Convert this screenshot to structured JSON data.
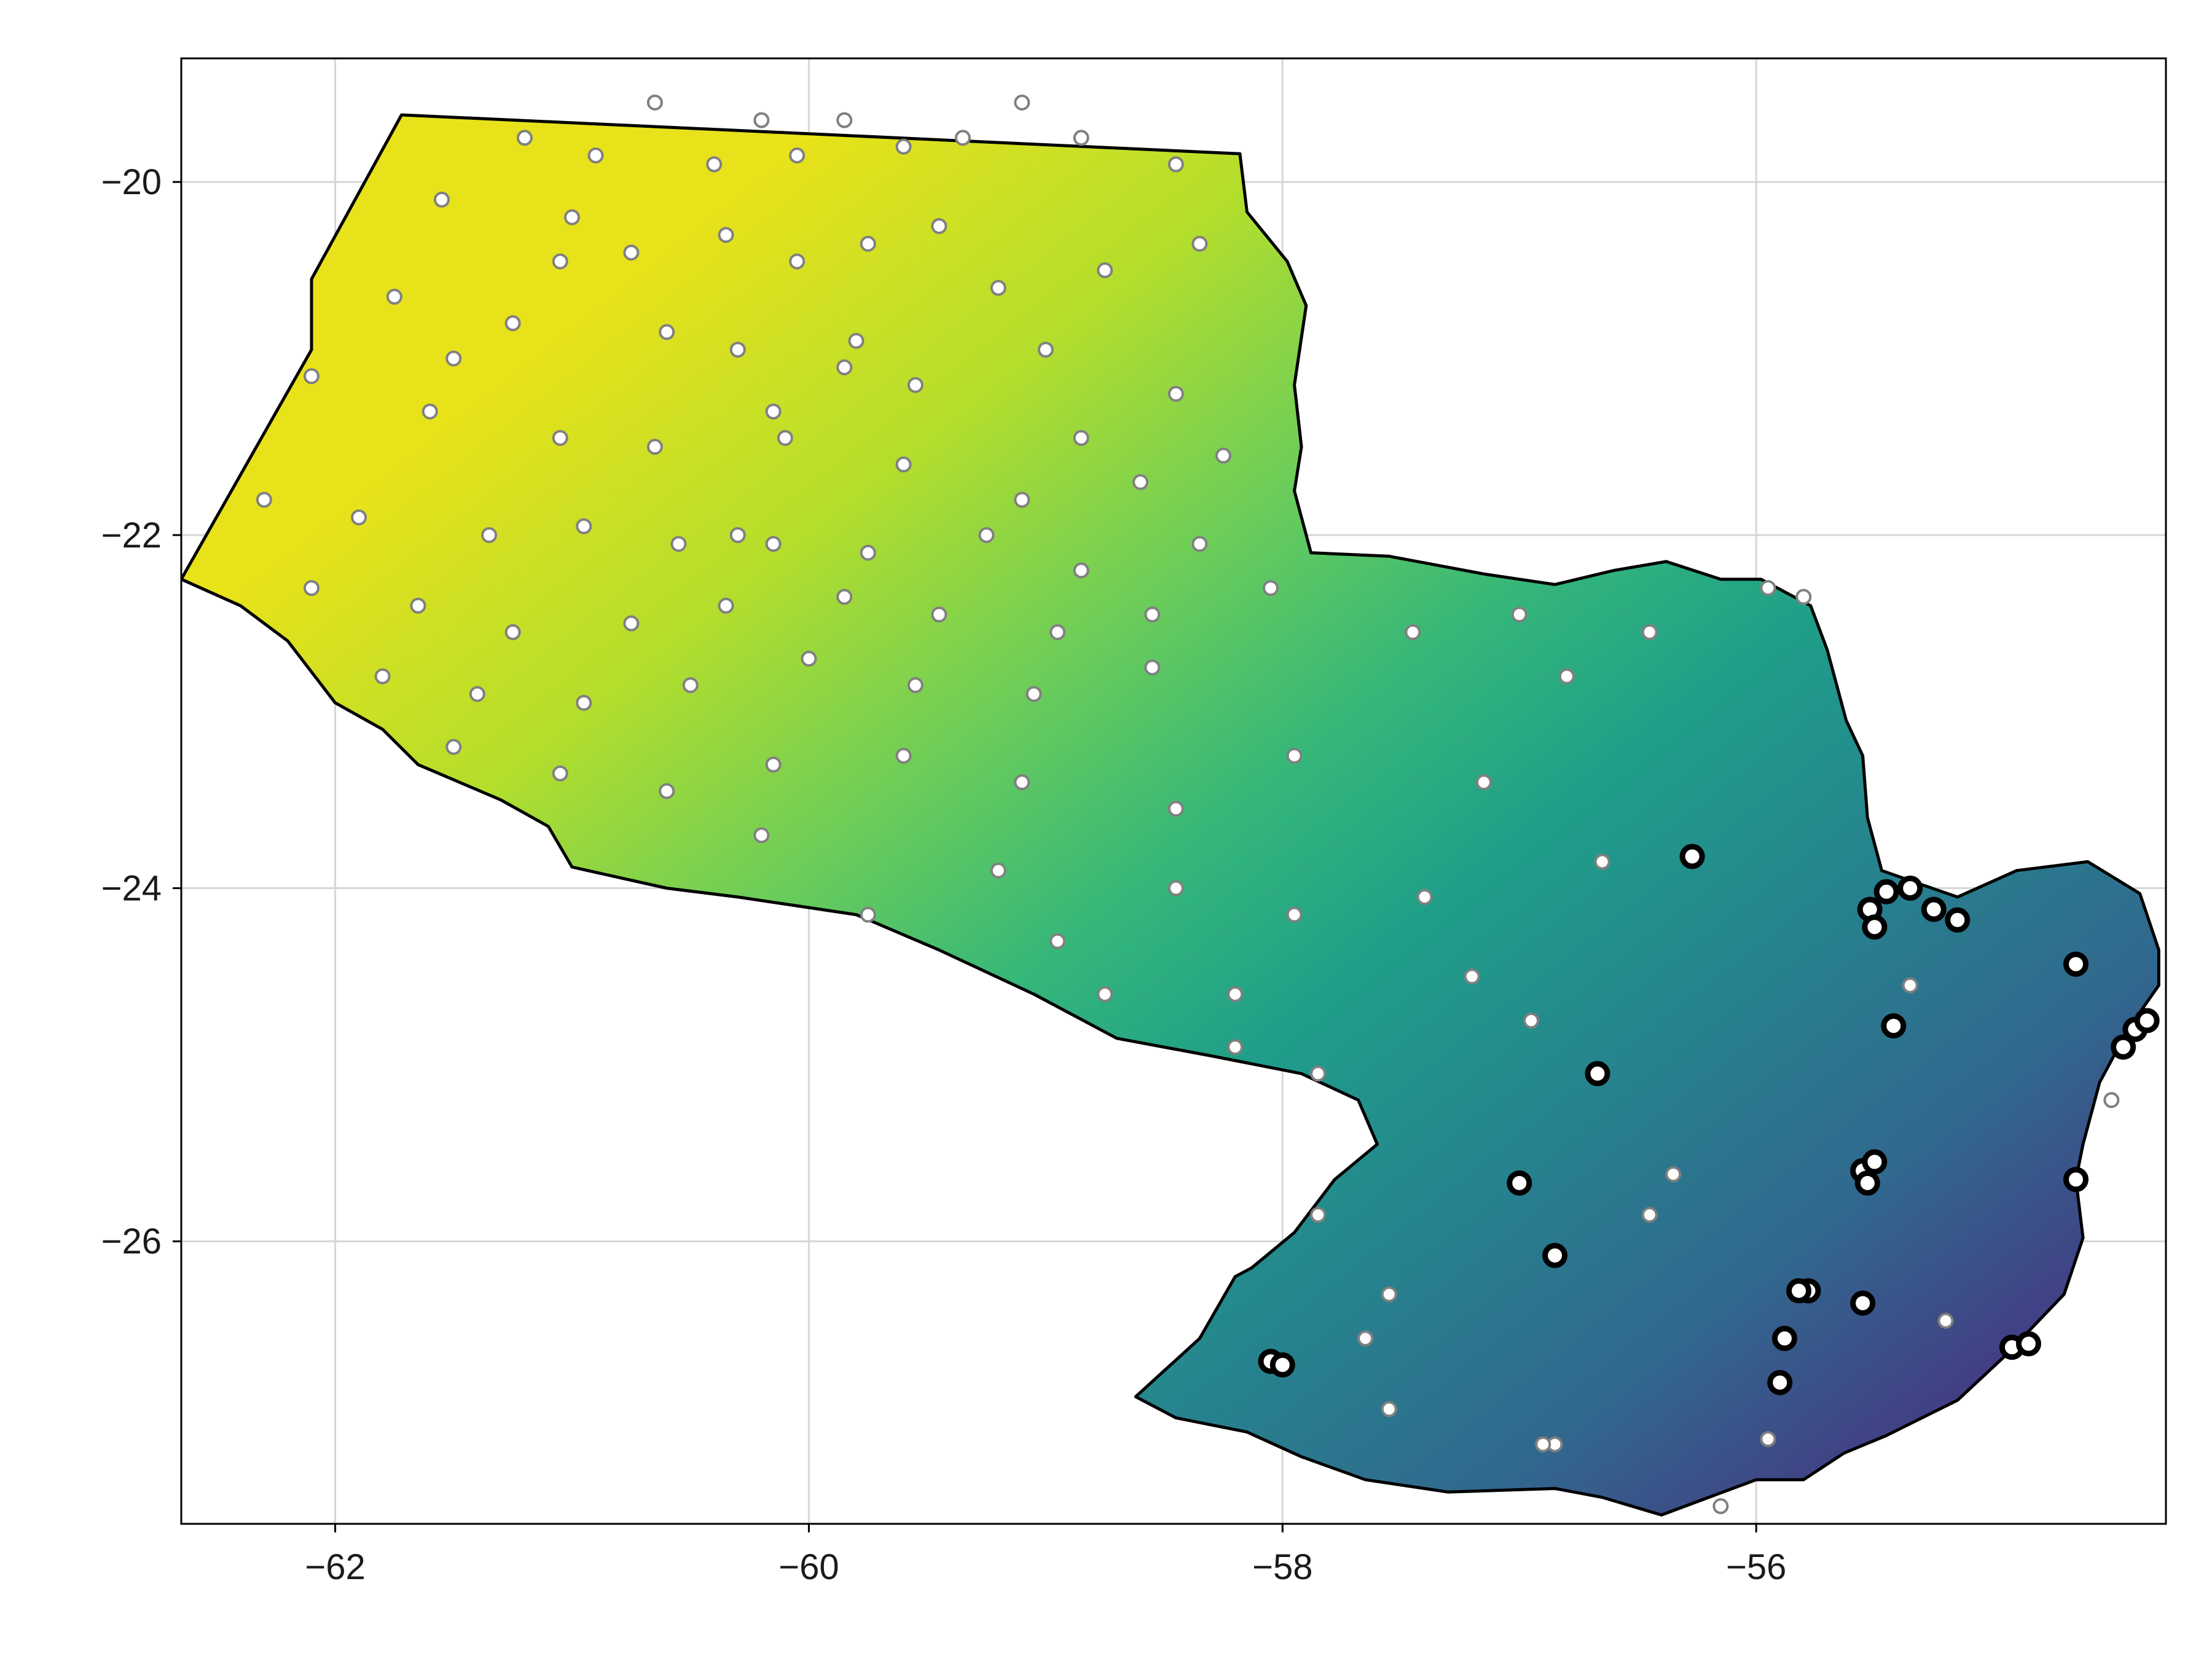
{
  "map": {
    "x_ticks": [
      {
        "value": -62,
        "label": "−62"
      },
      {
        "value": -60,
        "label": "−60"
      },
      {
        "value": -58,
        "label": "−58"
      },
      {
        "value": -56,
        "label": "−56"
      }
    ],
    "y_ticks": [
      {
        "value": -20,
        "label": "−20"
      },
      {
        "value": -22,
        "label": "−22"
      },
      {
        "value": -24,
        "label": "−24"
      },
      {
        "value": -26,
        "label": "−26"
      }
    ],
    "xlim": [
      -62.65,
      -54.27
    ],
    "ylim": [
      -27.6,
      -19.3
    ],
    "grid": true,
    "colormap": "viridis",
    "colors": {
      "frame": "#000000",
      "border": "#000000",
      "grid": "#d6d6d6",
      "small_marker_fill": "#ffffff",
      "small_marker_stroke": "#808080",
      "large_marker_fill": "#ffffff",
      "large_marker_stroke": "#000000"
    },
    "border": [
      [
        -61.72,
        -19.62
      ],
      [
        -58.18,
        -19.84
      ],
      [
        -58.15,
        -20.17
      ],
      [
        -57.98,
        -20.45
      ],
      [
        -57.9,
        -20.7
      ],
      [
        -57.95,
        -21.15
      ],
      [
        -57.92,
        -21.5
      ],
      [
        -57.95,
        -21.75
      ],
      [
        -57.88,
        -22.1
      ],
      [
        -57.55,
        -22.12
      ],
      [
        -57.15,
        -22.22
      ],
      [
        -56.85,
        -22.28
      ],
      [
        -56.6,
        -22.2
      ],
      [
        -56.38,
        -22.15
      ],
      [
        -56.15,
        -22.25
      ],
      [
        -55.98,
        -22.25
      ],
      [
        -55.77,
        -22.4
      ],
      [
        -55.7,
        -22.65
      ],
      [
        -55.62,
        -23.05
      ],
      [
        -55.55,
        -23.25
      ],
      [
        -55.53,
        -23.6
      ],
      [
        -55.47,
        -23.9
      ],
      [
        -55.3,
        -23.98
      ],
      [
        -55.15,
        -24.05
      ],
      [
        -54.9,
        -23.9
      ],
      [
        -54.6,
        -23.85
      ],
      [
        -54.38,
        -24.03
      ],
      [
        -54.3,
        -24.35
      ],
      [
        -54.3,
        -24.55
      ],
      [
        -54.43,
        -24.8
      ],
      [
        -54.55,
        -25.1
      ],
      [
        -54.62,
        -25.45
      ],
      [
        -54.65,
        -25.65
      ],
      [
        -54.62,
        -25.98
      ],
      [
        -54.7,
        -26.3
      ],
      [
        -54.95,
        -26.65
      ],
      [
        -55.15,
        -26.9
      ],
      [
        -55.45,
        -27.1
      ],
      [
        -55.63,
        -27.2
      ],
      [
        -55.8,
        -27.35
      ],
      [
        -56.0,
        -27.35
      ],
      [
        -56.2,
        -27.45
      ],
      [
        -56.4,
        -27.55
      ],
      [
        -56.65,
        -27.45
      ],
      [
        -56.85,
        -27.4
      ],
      [
        -57.3,
        -27.42
      ],
      [
        -57.65,
        -27.35
      ],
      [
        -57.92,
        -27.22
      ],
      [
        -58.15,
        -27.08
      ],
      [
        -58.45,
        -27.0
      ],
      [
        -58.62,
        -26.88
      ],
      [
        -58.35,
        -26.55
      ],
      [
        -58.2,
        -26.2
      ],
      [
        -58.13,
        -26.15
      ],
      [
        -57.95,
        -25.95
      ],
      [
        -57.78,
        -25.65
      ],
      [
        -57.6,
        -25.45
      ],
      [
        -57.68,
        -25.2
      ],
      [
        -57.92,
        -25.05
      ],
      [
        -58.3,
        -24.95
      ],
      [
        -58.7,
        -24.85
      ],
      [
        -59.05,
        -24.6
      ],
      [
        -59.45,
        -24.35
      ],
      [
        -59.8,
        -24.15
      ],
      [
        -60.3,
        -24.05
      ],
      [
        -60.6,
        -24.0
      ],
      [
        -61.0,
        -23.88
      ],
      [
        -61.1,
        -23.65
      ],
      [
        -61.3,
        -23.5
      ],
      [
        -61.65,
        -23.3
      ],
      [
        -61.8,
        -23.1
      ],
      [
        -62.0,
        -22.95
      ],
      [
        -62.2,
        -22.6
      ],
      [
        -62.4,
        -22.4
      ],
      [
        -62.65,
        -22.25
      ],
      [
        -62.1,
        -20.95
      ],
      [
        -62.1,
        -20.55
      ]
    ],
    "small_points": [
      [
        -61.2,
        -19.75
      ],
      [
        -60.9,
        -19.85
      ],
      [
        -60.65,
        -19.55
      ],
      [
        -60.4,
        -19.9
      ],
      [
        -60.2,
        -19.65
      ],
      [
        -60.05,
        -19.85
      ],
      [
        -59.85,
        -19.65
      ],
      [
        -59.6,
        -19.8
      ],
      [
        -59.35,
        -19.75
      ],
      [
        -59.1,
        -19.55
      ],
      [
        -58.85,
        -19.75
      ],
      [
        -58.45,
        -19.9
      ],
      [
        -61.55,
        -20.1
      ],
      [
        -61.0,
        -20.2
      ],
      [
        -60.75,
        -20.4
      ],
      [
        -60.35,
        -20.3
      ],
      [
        -60.05,
        -20.45
      ],
      [
        -59.75,
        -20.35
      ],
      [
        -59.45,
        -20.25
      ],
      [
        -59.2,
        -20.6
      ],
      [
        -58.75,
        -20.5
      ],
      [
        -58.35,
        -20.35
      ],
      [
        -61.75,
        -20.65
      ],
      [
        -61.25,
        -20.8
      ],
      [
        -60.6,
        -20.85
      ],
      [
        -60.3,
        -20.95
      ],
      [
        -59.85,
        -21.05
      ],
      [
        -59.55,
        -21.15
      ],
      [
        -59.0,
        -20.95
      ],
      [
        -58.45,
        -21.2
      ],
      [
        -62.1,
        -21.1
      ],
      [
        -61.6,
        -21.3
      ],
      [
        -61.05,
        -21.45
      ],
      [
        -60.65,
        -21.5
      ],
      [
        -60.1,
        -21.45
      ],
      [
        -59.6,
        -21.6
      ],
      [
        -59.1,
        -21.8
      ],
      [
        -58.6,
        -21.7
      ],
      [
        -58.25,
        -21.55
      ],
      [
        -62.3,
        -21.8
      ],
      [
        -61.9,
        -21.9
      ],
      [
        -61.35,
        -22.0
      ],
      [
        -60.95,
        -21.95
      ],
      [
        -60.55,
        -22.05
      ],
      [
        -60.15,
        -22.05
      ],
      [
        -59.75,
        -22.1
      ],
      [
        -59.25,
        -22.0
      ],
      [
        -58.85,
        -22.2
      ],
      [
        -58.35,
        -22.05
      ],
      [
        -62.1,
        -22.3
      ],
      [
        -61.65,
        -22.4
      ],
      [
        -61.25,
        -22.55
      ],
      [
        -60.75,
        -22.5
      ],
      [
        -60.35,
        -22.4
      ],
      [
        -59.85,
        -22.35
      ],
      [
        -59.45,
        -22.45
      ],
      [
        -58.95,
        -22.55
      ],
      [
        -58.55,
        -22.45
      ],
      [
        -58.05,
        -22.3
      ],
      [
        -61.8,
        -22.8
      ],
      [
        -61.4,
        -22.9
      ],
      [
        -60.95,
        -22.95
      ],
      [
        -60.5,
        -22.85
      ],
      [
        -60.0,
        -22.7
      ],
      [
        -59.55,
        -22.85
      ],
      [
        -59.05,
        -22.9
      ],
      [
        -58.55,
        -22.75
      ],
      [
        -61.5,
        -23.2
      ],
      [
        -61.05,
        -23.35
      ],
      [
        -60.6,
        -23.45
      ],
      [
        -60.15,
        -23.3
      ],
      [
        -59.6,
        -23.25
      ],
      [
        -59.1,
        -23.4
      ],
      [
        -58.45,
        -23.55
      ],
      [
        -57.95,
        -23.25
      ],
      [
        -57.45,
        -22.55
      ],
      [
        -57.0,
        -22.45
      ],
      [
        -56.45,
        -22.55
      ],
      [
        -55.95,
        -22.3
      ],
      [
        -55.8,
        -22.35
      ],
      [
        -57.15,
        -23.4
      ],
      [
        -56.8,
        -22.8
      ],
      [
        -56.65,
        -23.85
      ],
      [
        -57.4,
        -24.05
      ],
      [
        -57.95,
        -24.15
      ],
      [
        -58.45,
        -24.0
      ],
      [
        -59.2,
        -23.9
      ],
      [
        -59.75,
        -24.15
      ],
      [
        -60.2,
        -23.7
      ],
      [
        -58.75,
        -24.6
      ],
      [
        -58.2,
        -24.6
      ],
      [
        -57.85,
        -25.05
      ],
      [
        -57.2,
        -24.5
      ],
      [
        -56.95,
        -24.75
      ],
      [
        -56.45,
        -25.85
      ],
      [
        -56.35,
        -25.62
      ],
      [
        -57.85,
        -25.85
      ],
      [
        -57.55,
        -26.3
      ],
      [
        -57.65,
        -26.55
      ],
      [
        -57.55,
        -26.95
      ],
      [
        -56.85,
        -27.15
      ],
      [
        -56.15,
        -27.5
      ],
      [
        -55.95,
        -27.12
      ],
      [
        -55.2,
        -26.45
      ],
      [
        -55.35,
        -24.55
      ],
      [
        -54.5,
        -25.2
      ],
      [
        -56.9,
        -27.15
      ],
      [
        -58.2,
        -24.9
      ],
      [
        -58.95,
        -24.3
      ],
      [
        -60.3,
        -22.0
      ],
      [
        -61.5,
        -21.0
      ],
      [
        -59.8,
        -20.9
      ],
      [
        -58.85,
        -21.45
      ],
      [
        -61.05,
        -20.45
      ],
      [
        -60.15,
        -21.3
      ]
    ],
    "large_points": [
      [
        -56.27,
        -23.82
      ],
      [
        -55.52,
        -24.12
      ],
      [
        -55.45,
        -24.02
      ],
      [
        -55.35,
        -24.0
      ],
      [
        -55.25,
        -24.12
      ],
      [
        -55.15,
        -24.18
      ],
      [
        -55.5,
        -24.22
      ],
      [
        -55.42,
        -24.78
      ],
      [
        -54.65,
        -24.43
      ],
      [
        -54.4,
        -24.8
      ],
      [
        -54.35,
        -24.75
      ],
      [
        -54.45,
        -24.9
      ],
      [
        -56.67,
        -25.05
      ],
      [
        -57.0,
        -25.67
      ],
      [
        -56.85,
        -26.08
      ],
      [
        -55.55,
        -25.6
      ],
      [
        -55.5,
        -25.55
      ],
      [
        -55.53,
        -25.67
      ],
      [
        -54.65,
        -25.65
      ],
      [
        -55.78,
        -26.28
      ],
      [
        -55.82,
        -26.28
      ],
      [
        -55.55,
        -26.35
      ],
      [
        -55.88,
        -26.55
      ],
      [
        -55.9,
        -26.8
      ],
      [
        -54.92,
        -26.6
      ],
      [
        -54.85,
        -26.58
      ],
      [
        -58.05,
        -26.68
      ],
      [
        -58.0,
        -26.7
      ]
    ]
  }
}
